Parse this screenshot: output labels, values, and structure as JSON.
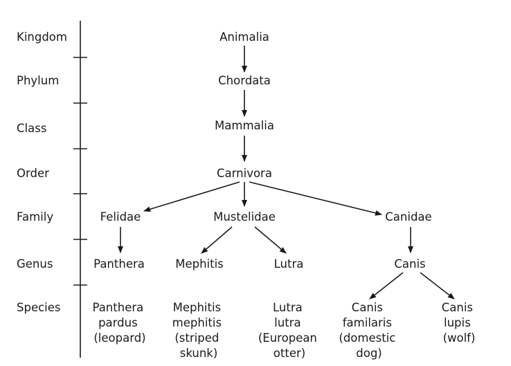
{
  "colors": {
    "ink": "#1a1a1a",
    "background": "#ffffff"
  },
  "ranks": {
    "kingdom": "Kingdom",
    "phylum": "Phylum",
    "class": "Class",
    "order": "Order",
    "family": "Family",
    "genus": "Genus",
    "species": "Species"
  },
  "taxa": {
    "kingdom": "Animalia",
    "phylum": "Chordata",
    "class": "Mammalia",
    "order": "Carnivora",
    "family_felidae": "Felidae",
    "family_mustelidae": "Mustelidae",
    "family_canidae": "Canidae",
    "genus_panthera": "Panthera",
    "genus_mephitis": "Mephitis",
    "genus_lutra": "Lutra",
    "genus_canis": "Canis"
  },
  "species": {
    "panthera": [
      "Panthera",
      "pardus",
      "(leopard)"
    ],
    "mephitis": [
      "Mephitis",
      "mephitis",
      "(striped",
      "skunk)"
    ],
    "lutra": [
      "Lutra",
      "lutra",
      "(European",
      "otter)"
    ],
    "canis_familaris": [
      "Canis",
      "familaris",
      "(domestic",
      "dog)"
    ],
    "canis_lupis": [
      "Canis",
      "lupis",
      "(wolf)"
    ]
  }
}
